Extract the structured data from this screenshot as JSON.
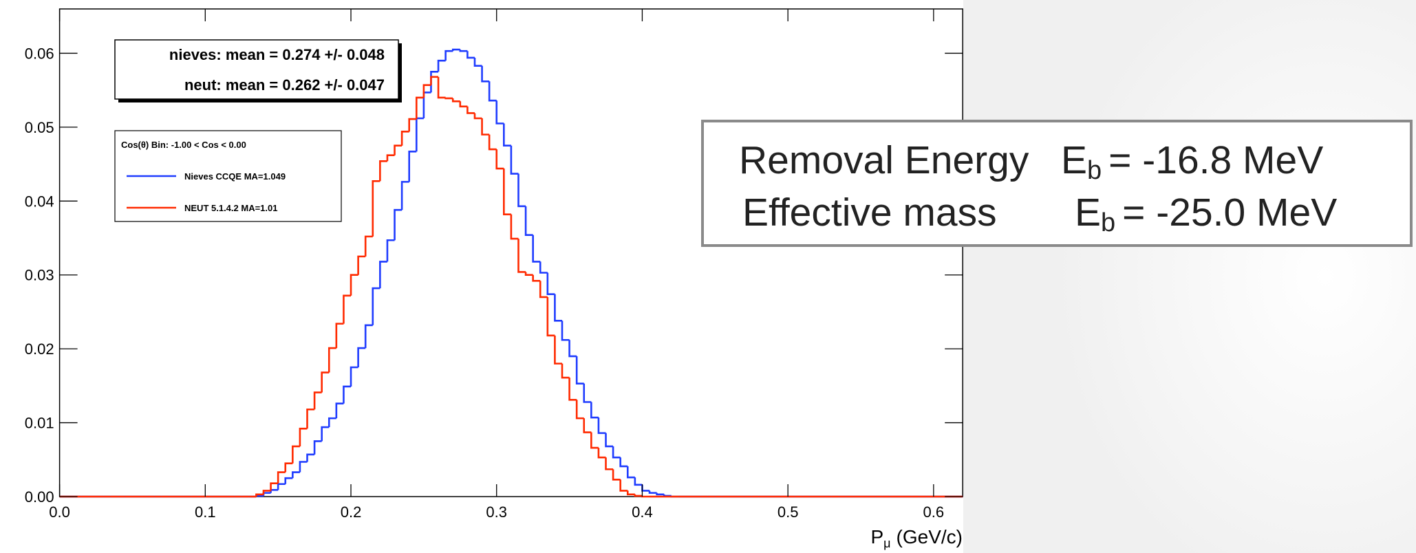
{
  "chart_data": {
    "type": "histogram",
    "x_label": "P",
    "x_label_sub": "μ",
    "x_label_unit": "(GeV/c)",
    "bins": [
      0,
      0.005,
      0.01,
      0.015,
      0.02,
      0.025,
      0.03,
      0.035,
      0.04,
      0.045,
      0.05,
      0.055,
      0.06,
      0.065,
      0.07,
      0.075,
      0.08,
      0.085,
      0.09,
      0.095,
      0.1,
      0.105,
      0.11,
      0.115,
      0.12,
      0.125,
      0.13,
      0.135,
      0.14,
      0.145,
      0.15,
      0.155,
      0.16,
      0.165,
      0.17,
      0.175,
      0.18,
      0.185,
      0.19,
      0.195,
      0.2,
      0.205,
      0.21,
      0.215,
      0.22,
      0.225,
      0.23,
      0.235,
      0.24,
      0.245,
      0.25,
      0.255,
      0.26,
      0.265,
      0.27,
      0.275,
      0.28,
      0.285,
      0.29,
      0.295,
      0.3,
      0.305,
      0.31,
      0.315,
      0.32,
      0.325,
      0.33,
      0.335,
      0.34,
      0.345,
      0.35,
      0.355,
      0.36,
      0.365,
      0.37,
      0.375,
      0.38,
      0.385,
      0.39,
      0.395,
      0.4,
      0.405,
      0.41,
      0.415,
      0.42,
      0.425,
      0.43,
      0.435,
      0.44,
      0.445,
      0.45,
      0.455,
      0.46,
      0.465,
      0.47,
      0.475,
      0.48,
      0.485,
      0.49,
      0.495,
      0.5,
      0.505,
      0.51,
      0.515,
      0.52,
      0.525,
      0.53,
      0.535,
      0.54,
      0.545,
      0.55,
      0.555,
      0.56,
      0.565,
      0.57,
      0.575,
      0.58,
      0.585,
      0.59,
      0.595,
      0.6,
      0.605,
      0.61,
      0.615,
      0.62
    ],
    "series": [
      {
        "name": "Nieves CCQE MA=1.049",
        "color": "#1f3cff",
        "values": [
          0,
          0,
          0,
          0,
          0,
          0,
          0,
          0,
          0,
          0,
          0,
          0,
          0,
          0,
          0,
          0,
          0,
          0,
          0,
          0,
          0,
          0,
          0,
          0,
          0,
          0,
          0,
          0.0001,
          0.0005,
          0.0009,
          0.0017,
          0.0025,
          0.0033,
          0.0047,
          0.0057,
          0.0075,
          0.0094,
          0.0106,
          0.0126,
          0.0149,
          0.0175,
          0.0201,
          0.0232,
          0.0282,
          0.0318,
          0.0347,
          0.0388,
          0.0426,
          0.0467,
          0.0512,
          0.0547,
          0.0575,
          0.059,
          0.0603,
          0.0605,
          0.0603,
          0.0594,
          0.0583,
          0.0562,
          0.0536,
          0.0505,
          0.0475,
          0.0437,
          0.0393,
          0.0354,
          0.0318,
          0.0303,
          0.0274,
          0.0238,
          0.0212,
          0.019,
          0.0153,
          0.0128,
          0.0107,
          0.0086,
          0.0068,
          0.0053,
          0.0041,
          0.0026,
          0.0016,
          0.0008,
          0.0005,
          0.0003,
          0.0001,
          0,
          0,
          0,
          0,
          0,
          0,
          0,
          0,
          0,
          0,
          0,
          0,
          0,
          0,
          0,
          0,
          0,
          0,
          0,
          0,
          0,
          0,
          0,
          0,
          0,
          0,
          0,
          0,
          0,
          0,
          0,
          0,
          0,
          0,
          0,
          0,
          0,
          0,
          0,
          0
        ]
      },
      {
        "name": "NEUT 5.1.4.2 MA=1.01",
        "color": "#ff2a00",
        "values": [
          0,
          0,
          0,
          0,
          0,
          0,
          0,
          0,
          0,
          0,
          0,
          0,
          0,
          0,
          0,
          0,
          0,
          0,
          0,
          0,
          0,
          0,
          0,
          0,
          0,
          0,
          0,
          0.0003,
          0.0008,
          0.0018,
          0.0033,
          0.0045,
          0.0068,
          0.0092,
          0.0118,
          0.0141,
          0.0168,
          0.0201,
          0.0234,
          0.0272,
          0.03,
          0.0325,
          0.0352,
          0.0427,
          0.0454,
          0.0462,
          0.0475,
          0.0494,
          0.0511,
          0.054,
          0.0557,
          0.0568,
          0.054,
          0.0539,
          0.0535,
          0.0528,
          0.0519,
          0.0512,
          0.049,
          0.047,
          0.0444,
          0.0382,
          0.0349,
          0.0304,
          0.03,
          0.0292,
          0.027,
          0.0218,
          0.018,
          0.0161,
          0.0131,
          0.0106,
          0.0087,
          0.0066,
          0.0053,
          0.0037,
          0.0023,
          0.0008,
          0.0003,
          0.0001,
          0,
          0,
          0,
          0,
          0,
          0,
          0,
          0,
          0,
          0,
          0,
          0,
          0,
          0,
          0,
          0,
          0,
          0,
          0,
          0,
          0,
          0,
          0,
          0,
          0,
          0,
          0,
          0,
          0,
          0,
          0,
          0,
          0,
          0,
          0,
          0,
          0,
          0,
          0,
          0,
          0,
          0,
          0,
          0
        ]
      }
    ],
    "xlim": [
      0,
      0.62
    ],
    "ylim": [
      0,
      0.066
    ],
    "xticks": [
      {
        "value": 0,
        "label": "0.0"
      },
      0.1,
      0.2,
      0.3,
      0.4,
      0.5,
      0.6
    ],
    "yticks": [
      {
        "value": 0,
        "label": "0.00"
      },
      0.01,
      0.02,
      0.03,
      0.04,
      0.05,
      0.06
    ],
    "stats": [
      "nieves: mean = 0.274 +/- 0.048",
      "neut: mean = 0.262 +/- 0.047"
    ],
    "legend_title": "Cos(θ) Bin: -1.00 < Cos < 0.00",
    "annotations": [
      {
        "text": "Removal Energy",
        "symbol": "E",
        "sub": "b",
        "value": "= -16.8 MeV"
      },
      {
        "text": "Effective mass",
        "symbol": "E",
        "sub": "b",
        "value": "= -25.0 MeV"
      }
    ]
  }
}
